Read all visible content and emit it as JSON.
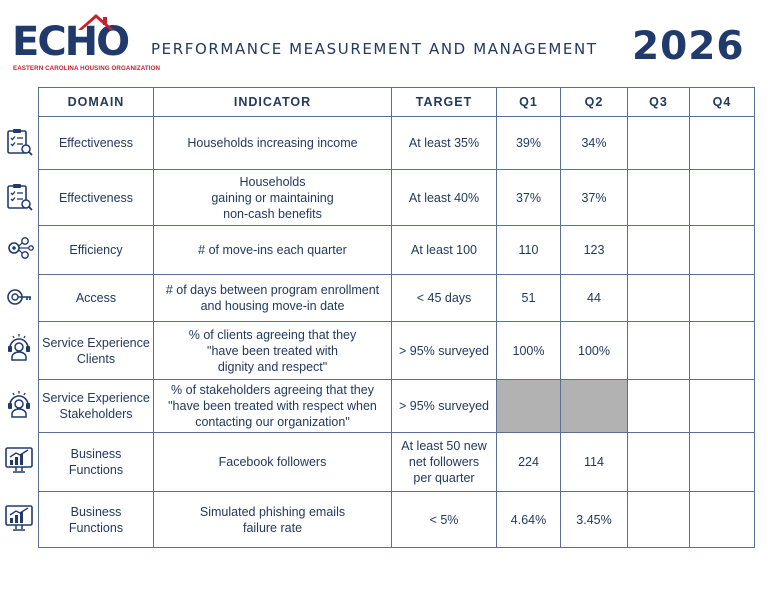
{
  "header": {
    "logo_text": "ECHO",
    "logo_subtitle": "EASTERN CAROLINA HOUSING ORGANIZATION",
    "title": "PERFORMANCE MEASUREMENT AND MANAGEMENT",
    "year": "2026"
  },
  "table": {
    "columns": [
      "DOMAIN",
      "INDICATOR",
      "TARGET",
      "Q1",
      "Q2",
      "Q3",
      "Q4"
    ],
    "rows": [
      {
        "icon": "clipboard-checklist-icon",
        "domain": "Effectiveness",
        "indicator": [
          "Households increasing income"
        ],
        "target": [
          "At least 35%"
        ],
        "q1": "39%",
        "q2": "34%",
        "q3": "",
        "q4": "",
        "shaded": false
      },
      {
        "icon": "clipboard-checklist-icon",
        "domain": "Effectiveness",
        "indicator": [
          "Households",
          "gaining or maintaining",
          "non-cash benefits"
        ],
        "target": [
          "At least 40%"
        ],
        "q1": "37%",
        "q2": "37%",
        "q3": "",
        "q4": "",
        "shaded": false
      },
      {
        "icon": "gears-icon",
        "domain": "Efficiency",
        "indicator": [
          "# of move-ins each quarter"
        ],
        "target": [
          "At least 100"
        ],
        "q1": "110",
        "q2": "123",
        "q3": "",
        "q4": "",
        "shaded": false
      },
      {
        "icon": "key-icon",
        "domain": "Access",
        "indicator": [
          "# of days between program enrollment",
          "and housing move-in date"
        ],
        "target": [
          "< 45 days"
        ],
        "q1": "51",
        "q2": "44",
        "q3": "",
        "q4": "",
        "shaded": false
      },
      {
        "icon": "customer-service-icon",
        "domain": "Service Experience Clients",
        "indicator": [
          "% of clients agreeing that they",
          "\"have been treated with",
          "dignity and respect\""
        ],
        "target": [
          "> 95% surveyed"
        ],
        "q1": "100%",
        "q2": "100%",
        "q3": "",
        "q4": "",
        "shaded": false
      },
      {
        "icon": "customer-service-icon",
        "domain": "Service Experience Stakeholders",
        "indicator": [
          "% of stakeholders agreeing that they",
          "\"have been treated with respect when",
          "contacting our organization\""
        ],
        "target": [
          "> 95% surveyed"
        ],
        "q1": "",
        "q2": "",
        "q3": "",
        "q4": "",
        "shaded": true
      },
      {
        "icon": "growth-chart-icon",
        "domain": "Business Functions",
        "indicator": [
          "Facebook followers"
        ],
        "target": [
          "At least 50 new",
          "net followers",
          "per quarter"
        ],
        "q1": "224",
        "q2": "114",
        "q3": "",
        "q4": "",
        "shaded": false
      },
      {
        "icon": "growth-chart-icon",
        "domain": "Business Functions",
        "indicator": [
          "Simulated phishing emails",
          "failure rate"
        ],
        "target": [
          "< 5%"
        ],
        "q1": "4.64%",
        "q2": "3.45%",
        "q3": "",
        "q4": "",
        "shaded": false
      }
    ]
  },
  "colors": {
    "navy": "#1f3a6b",
    "red": "#c8202f",
    "border": "#5b6f93",
    "shade": "#b2b2b2"
  }
}
